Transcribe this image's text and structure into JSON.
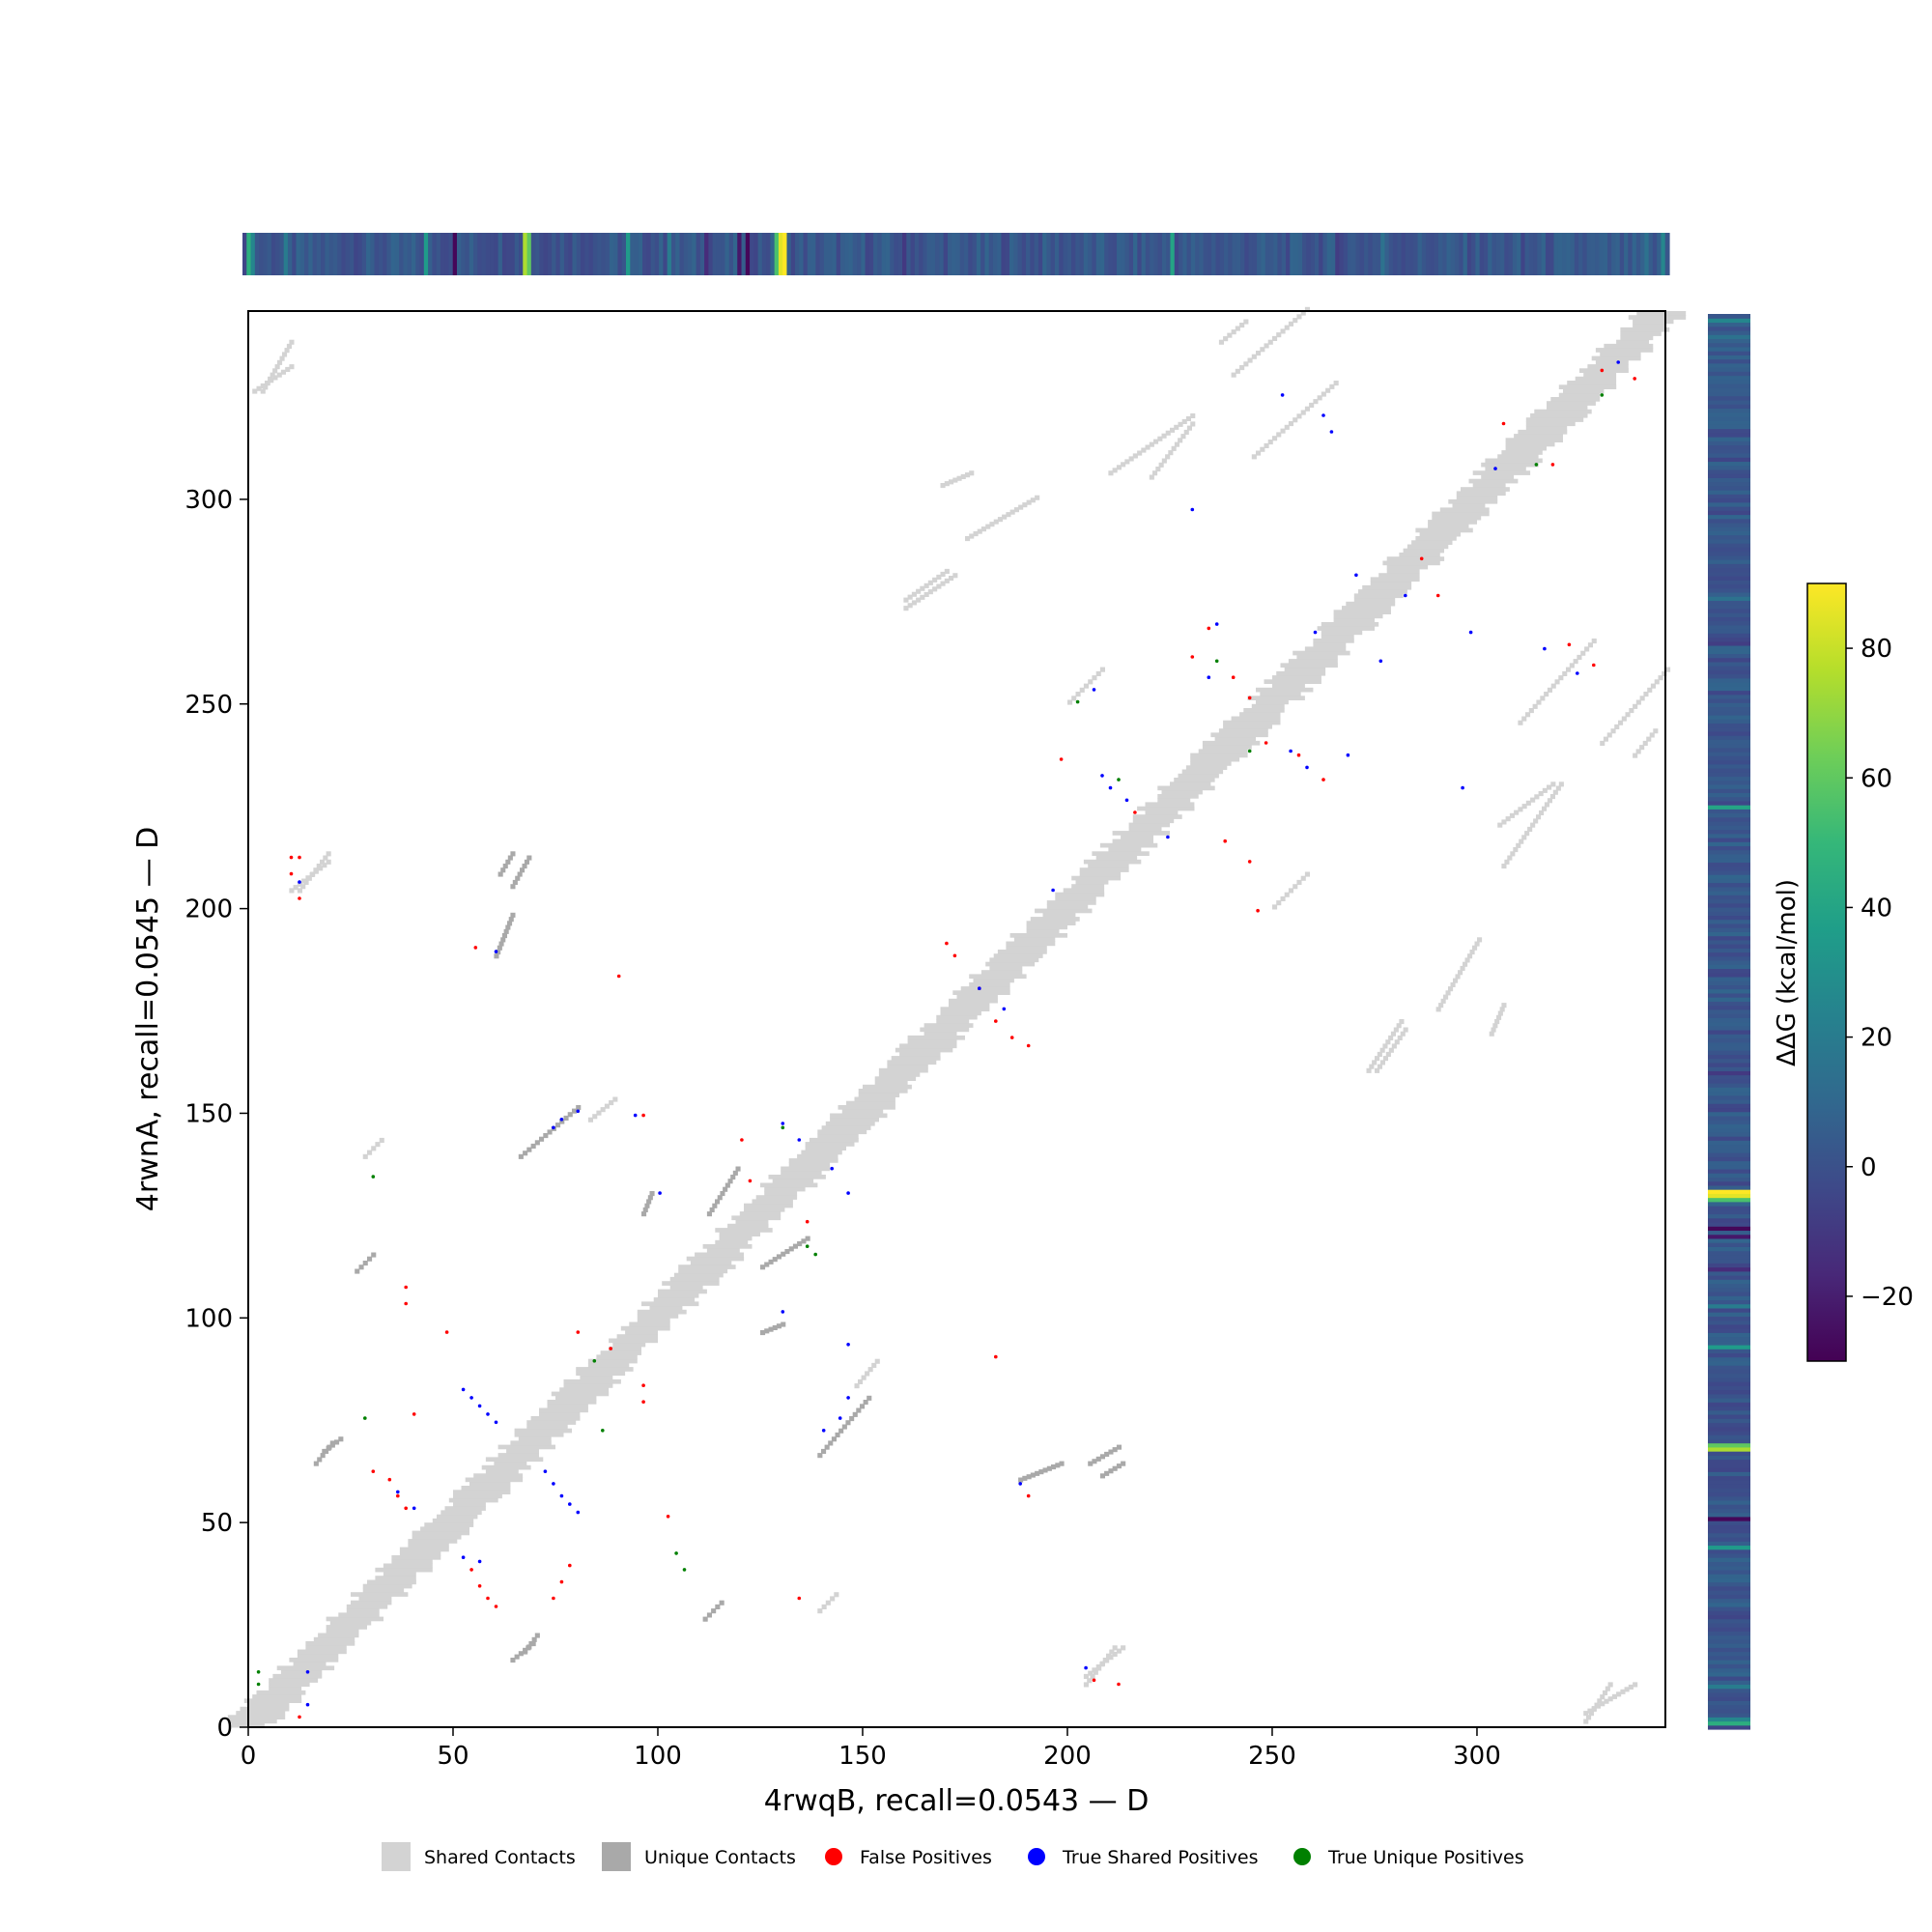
{
  "chart_data": {
    "type": "heatmap",
    "title": "",
    "xlabel": "4rwqB, recall=0.0543 — D",
    "ylabel": "4rwnA, recall=0.0545 — D",
    "xlim": [
      0,
      346
    ],
    "ylim": [
      0,
      346
    ],
    "x_ticks": [
      0,
      50,
      100,
      150,
      200,
      250,
      300
    ],
    "y_ticks": [
      0,
      50,
      100,
      150,
      200,
      250,
      300
    ],
    "grid": false,
    "legend_position": "bottom-center",
    "colorbar": {
      "label": "ΔΔG (kcal/mol)",
      "ticks": [
        80,
        60,
        40,
        20,
        0,
        -20
      ],
      "range": [
        -30,
        90
      ],
      "colormap": "viridis",
      "colors": [
        "#440154",
        "#482878",
        "#3e4989",
        "#31688e",
        "#26828e",
        "#1f9e89",
        "#35b779",
        "#6ece58",
        "#b5de2b",
        "#fde725"
      ]
    },
    "legend": [
      {
        "label": "Shared Contacts",
        "marker": "square",
        "color": "#d3d3d3"
      },
      {
        "label": "Unique Contacts",
        "marker": "square",
        "color": "#a9a9a9"
      },
      {
        "label": "False Positives",
        "marker": "circle",
        "color": "#ff0000"
      },
      {
        "label": "True Shared Positives",
        "marker": "circle",
        "color": "#0000ff"
      },
      {
        "label": "True Unique Positives",
        "marker": "circle",
        "color": "#008000"
      }
    ],
    "ddg_peaks": [
      {
        "residue": 1,
        "value": 45
      },
      {
        "residue": 2,
        "value": 25
      },
      {
        "residue": 10,
        "value": 20
      },
      {
        "residue": 44,
        "value": 35
      },
      {
        "residue": 51,
        "value": -28
      },
      {
        "residue": 68,
        "value": 75
      },
      {
        "residue": 69,
        "value": 60
      },
      {
        "residue": 93,
        "value": 35
      },
      {
        "residue": 103,
        "value": 20
      },
      {
        "residue": 112,
        "value": -15
      },
      {
        "residue": 120,
        "value": -22
      },
      {
        "residue": 122,
        "value": -28
      },
      {
        "residue": 129,
        "value": 55
      },
      {
        "residue": 130,
        "value": 85
      },
      {
        "residue": 131,
        "value": 90
      },
      {
        "residue": 160,
        "value": -10
      },
      {
        "residue": 225,
        "value": 40
      },
      {
        "residue": 265,
        "value": -8
      },
      {
        "residue": 276,
        "value": 15
      },
      {
        "residue": 310,
        "value": -5
      },
      {
        "residue": 340,
        "value": 15
      },
      {
        "residue": 344,
        "value": 25
      }
    ],
    "shared_contact_clusters": [
      {
        "x": [
          28,
          32
        ],
        "y": [
          139,
          143
        ]
      },
      {
        "x": [
          83,
          89
        ],
        "y": [
          148,
          153
        ]
      },
      {
        "x": [
          169,
          176
        ],
        "y": [
          303,
          306
        ]
      },
      {
        "x": [
          237,
          243
        ],
        "y": [
          338,
          343
        ]
      },
      {
        "x": [
          250,
          258
        ],
        "y": [
          200,
          208
        ]
      },
      {
        "x": [
          306,
          320
        ],
        "y": [
          210,
          230
        ]
      },
      {
        "x": [
          290,
          300
        ],
        "y": [
          175,
          192
        ]
      },
      {
        "x": [
          275,
          282
        ],
        "y": [
          160,
          170
        ]
      },
      {
        "x": [
          204,
          213
        ],
        "y": [
          12,
          19
        ]
      },
      {
        "x": [
          1,
          10
        ],
        "y": [
          326,
          332
        ]
      },
      {
        "x": [
          326,
          338
        ],
        "y": [
          3,
          10
        ]
      },
      {
        "x": [
          330,
          346
        ],
        "y": [
          240,
          258
        ]
      },
      {
        "x": [
          10,
          19
        ],
        "y": [
          204,
          211
        ]
      },
      {
        "x": [
          160,
          172
        ],
        "y": [
          273,
          281
        ]
      },
      {
        "x": [
          220,
          230
        ],
        "y": [
          305,
          318
        ]
      },
      {
        "x": [
          310,
          328
        ],
        "y": [
          245,
          265
        ]
      }
    ],
    "unique_contact_clusters": [
      {
        "x": [
          18,
          22
        ],
        "y": [
          67,
          70
        ]
      },
      {
        "x": [
          64,
          69
        ],
        "y": [
          16,
          20
        ]
      },
      {
        "x": [
          111,
          115
        ],
        "y": [
          26,
          30
        ]
      },
      {
        "x": [
          208,
          213
        ],
        "y": [
          61,
          64
        ]
      },
      {
        "x": [
          96,
          98
        ],
        "y": [
          125,
          130
        ]
      },
      {
        "x": [
          60,
          64
        ],
        "y": [
          188,
          198
        ]
      },
      {
        "x": [
          64,
          68
        ],
        "y": [
          205,
          212
        ]
      },
      {
        "x": [
          139,
          151
        ],
        "y": [
          66,
          80
        ]
      },
      {
        "x": [
          112,
          119
        ],
        "y": [
          125,
          136
        ]
      }
    ],
    "false_positives": [
      {
        "x": 12,
        "y": 2
      },
      {
        "x": 10,
        "y": 212
      },
      {
        "x": 12,
        "y": 212
      },
      {
        "x": 10,
        "y": 208
      },
      {
        "x": 12,
        "y": 202
      },
      {
        "x": 38,
        "y": 107
      },
      {
        "x": 38,
        "y": 103
      },
      {
        "x": 40,
        "y": 76
      },
      {
        "x": 30,
        "y": 62
      },
      {
        "x": 34,
        "y": 60
      },
      {
        "x": 36,
        "y": 56
      },
      {
        "x": 38,
        "y": 53
      },
      {
        "x": 54,
        "y": 38
      },
      {
        "x": 56,
        "y": 34
      },
      {
        "x": 58,
        "y": 31
      },
      {
        "x": 60,
        "y": 29
      },
      {
        "x": 74,
        "y": 31
      },
      {
        "x": 76,
        "y": 35
      },
      {
        "x": 78,
        "y": 39
      },
      {
        "x": 55,
        "y": 190
      },
      {
        "x": 90,
        "y": 183
      },
      {
        "x": 80,
        "y": 96
      },
      {
        "x": 88,
        "y": 92
      },
      {
        "x": 96,
        "y": 83
      },
      {
        "x": 96,
        "y": 79
      },
      {
        "x": 120,
        "y": 143
      },
      {
        "x": 122,
        "y": 133
      },
      {
        "x": 170,
        "y": 191
      },
      {
        "x": 172,
        "y": 188
      },
      {
        "x": 178,
        "y": 180
      },
      {
        "x": 182,
        "y": 172
      },
      {
        "x": 186,
        "y": 168
      },
      {
        "x": 190,
        "y": 166
      },
      {
        "x": 230,
        "y": 261
      },
      {
        "x": 234,
        "y": 268
      },
      {
        "x": 240,
        "y": 256
      },
      {
        "x": 244,
        "y": 251
      },
      {
        "x": 248,
        "y": 240
      },
      {
        "x": 256,
        "y": 237
      },
      {
        "x": 262,
        "y": 231
      },
      {
        "x": 238,
        "y": 216
      },
      {
        "x": 244,
        "y": 211
      },
      {
        "x": 246,
        "y": 199
      },
      {
        "x": 216,
        "y": 223
      },
      {
        "x": 198,
        "y": 236
      },
      {
        "x": 206,
        "y": 11
      },
      {
        "x": 212,
        "y": 10
      },
      {
        "x": 286,
        "y": 285
      },
      {
        "x": 290,
        "y": 276
      },
      {
        "x": 306,
        "y": 318
      },
      {
        "x": 318,
        "y": 308
      },
      {
        "x": 330,
        "y": 331
      },
      {
        "x": 338,
        "y": 329
      },
      {
        "x": 322,
        "y": 264
      },
      {
        "x": 328,
        "y": 259
      },
      {
        "x": 136,
        "y": 123
      },
      {
        "x": 102,
        "y": 51
      },
      {
        "x": 134,
        "y": 31
      },
      {
        "x": 182,
        "y": 90
      },
      {
        "x": 190,
        "y": 56
      },
      {
        "x": 48,
        "y": 96
      },
      {
        "x": 96,
        "y": 149
      }
    ],
    "true_shared_positives": [
      {
        "x": 14,
        "y": 13
      },
      {
        "x": 14,
        "y": 5
      },
      {
        "x": 12,
        "y": 206
      },
      {
        "x": 60,
        "y": 189
      },
      {
        "x": 52,
        "y": 82
      },
      {
        "x": 54,
        "y": 80
      },
      {
        "x": 56,
        "y": 78
      },
      {
        "x": 58,
        "y": 76
      },
      {
        "x": 60,
        "y": 74
      },
      {
        "x": 72,
        "y": 62
      },
      {
        "x": 74,
        "y": 59
      },
      {
        "x": 76,
        "y": 56
      },
      {
        "x": 78,
        "y": 54
      },
      {
        "x": 80,
        "y": 52
      },
      {
        "x": 36,
        "y": 57
      },
      {
        "x": 40,
        "y": 53
      },
      {
        "x": 52,
        "y": 41
      },
      {
        "x": 56,
        "y": 40
      },
      {
        "x": 74,
        "y": 146
      },
      {
        "x": 76,
        "y": 148
      },
      {
        "x": 80,
        "y": 150
      },
      {
        "x": 94,
        "y": 149
      },
      {
        "x": 100,
        "y": 130
      },
      {
        "x": 130,
        "y": 147
      },
      {
        "x": 134,
        "y": 143
      },
      {
        "x": 142,
        "y": 136
      },
      {
        "x": 146,
        "y": 130
      },
      {
        "x": 130,
        "y": 101
      },
      {
        "x": 146,
        "y": 93
      },
      {
        "x": 146,
        "y": 80
      },
      {
        "x": 144,
        "y": 75
      },
      {
        "x": 140,
        "y": 72
      },
      {
        "x": 178,
        "y": 180
      },
      {
        "x": 184,
        "y": 175
      },
      {
        "x": 196,
        "y": 204
      },
      {
        "x": 208,
        "y": 232
      },
      {
        "x": 210,
        "y": 229
      },
      {
        "x": 214,
        "y": 226
      },
      {
        "x": 206,
        "y": 253
      },
      {
        "x": 236,
        "y": 269
      },
      {
        "x": 234,
        "y": 256
      },
      {
        "x": 254,
        "y": 238
      },
      {
        "x": 258,
        "y": 234
      },
      {
        "x": 252,
        "y": 325
      },
      {
        "x": 262,
        "y": 320
      },
      {
        "x": 264,
        "y": 316
      },
      {
        "x": 270,
        "y": 281
      },
      {
        "x": 282,
        "y": 276
      },
      {
        "x": 298,
        "y": 267
      },
      {
        "x": 296,
        "y": 229
      },
      {
        "x": 316,
        "y": 263
      },
      {
        "x": 324,
        "y": 257
      },
      {
        "x": 276,
        "y": 260
      },
      {
        "x": 260,
        "y": 267
      },
      {
        "x": 268,
        "y": 237
      },
      {
        "x": 230,
        "y": 297
      },
      {
        "x": 304,
        "y": 307
      },
      {
        "x": 334,
        "y": 333
      },
      {
        "x": 204,
        "y": 14
      },
      {
        "x": 188,
        "y": 59
      },
      {
        "x": 224,
        "y": 217
      }
    ],
    "true_unique_positives": [
      {
        "x": 2,
        "y": 13
      },
      {
        "x": 2,
        "y": 10
      },
      {
        "x": 28,
        "y": 75
      },
      {
        "x": 30,
        "y": 134
      },
      {
        "x": 104,
        "y": 42
      },
      {
        "x": 106,
        "y": 38
      },
      {
        "x": 130,
        "y": 146
      },
      {
        "x": 136,
        "y": 117
      },
      {
        "x": 138,
        "y": 115
      },
      {
        "x": 202,
        "y": 250
      },
      {
        "x": 212,
        "y": 231
      },
      {
        "x": 236,
        "y": 260
      },
      {
        "x": 244,
        "y": 238
      },
      {
        "x": 314,
        "y": 308
      },
      {
        "x": 330,
        "y": 325
      },
      {
        "x": 84,
        "y": 89
      },
      {
        "x": 86,
        "y": 72
      }
    ]
  }
}
